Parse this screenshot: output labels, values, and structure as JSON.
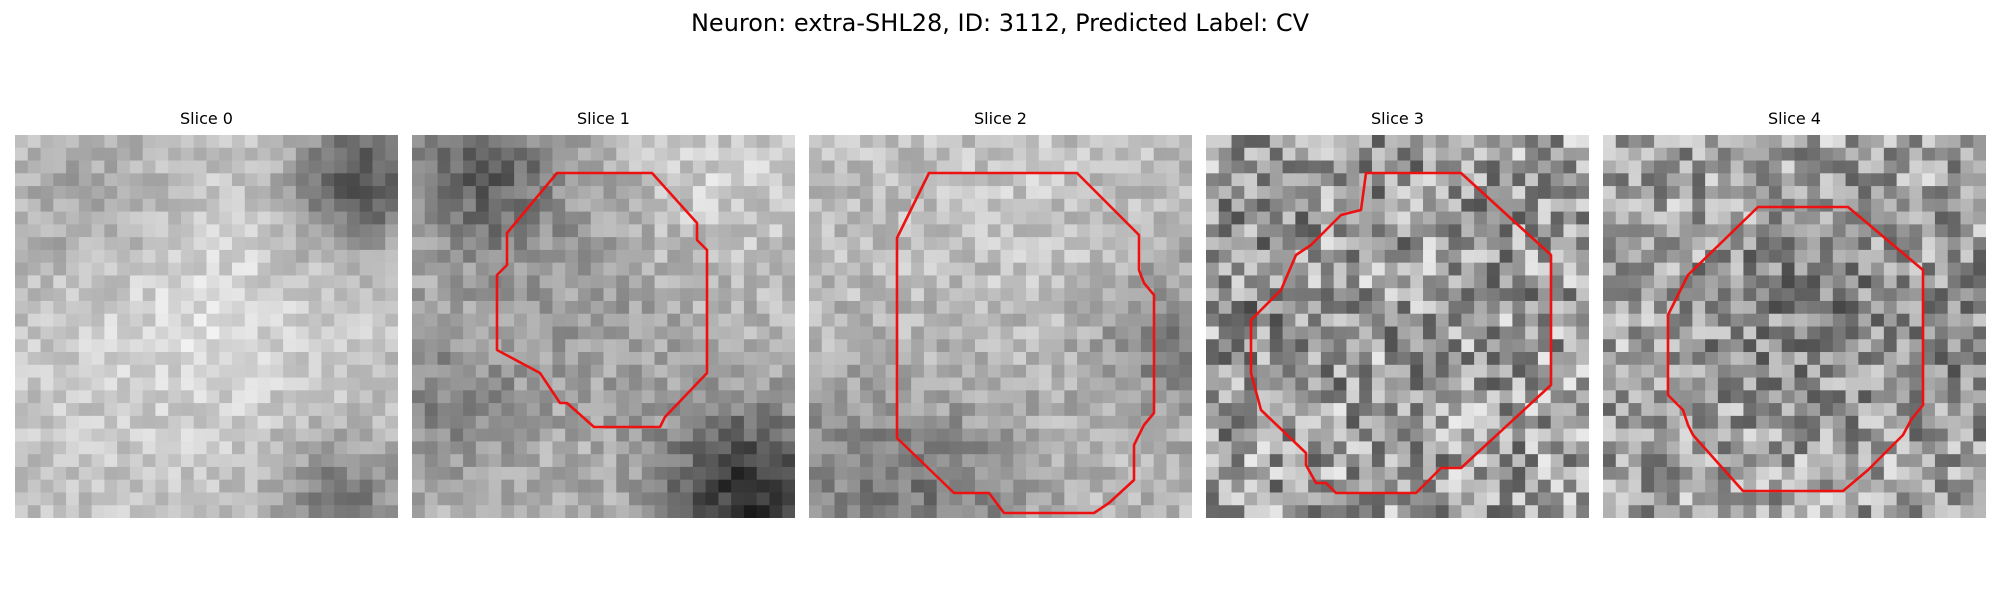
{
  "title": "Neuron: extra-SHL28, ID: 3112, Predicted Label: CV",
  "contour_color": "#ee1111",
  "panels": [
    {
      "label": "Slice 0",
      "contour": false
    },
    {
      "label": "Slice 1",
      "contour": true
    },
    {
      "label": "Slice 2",
      "contour": true
    },
    {
      "label": "Slice 3",
      "contour": true
    },
    {
      "label": "Slice 4",
      "contour": true
    }
  ]
}
